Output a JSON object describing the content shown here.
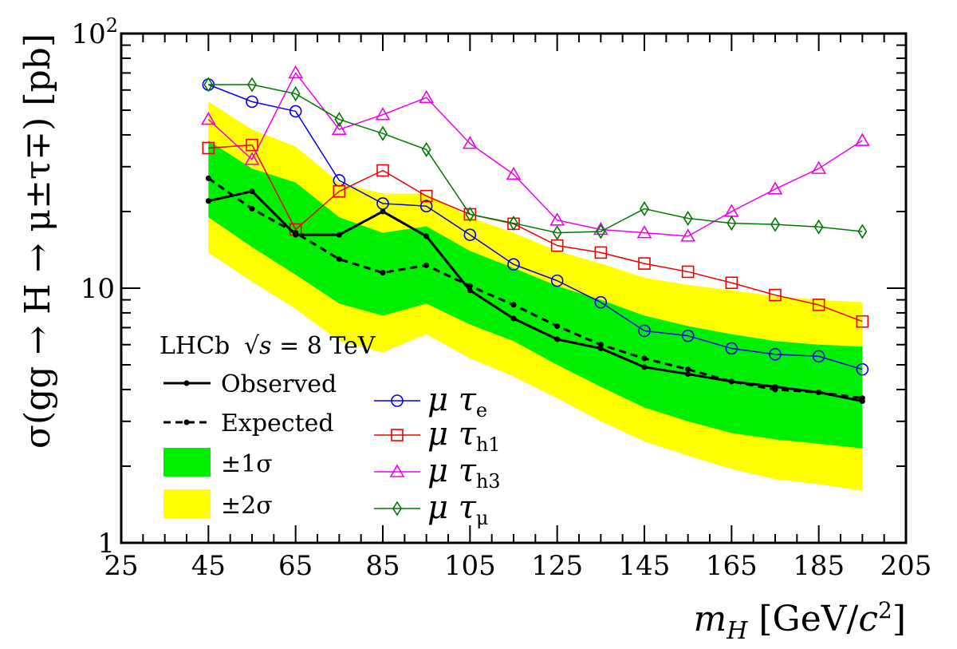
{
  "chart_data": {
    "type": "line",
    "x_scale": "linear",
    "y_scale": "log",
    "xlabel": {
      "var": "m",
      "sub": "H",
      "unit": "[GeV/",
      "unit_var": "c",
      "unit_sup": "2",
      "unit_close": "]"
    },
    "ylabel": "σ(gg → H → μ±τ∓) [pb]",
    "xlim": [
      25,
      205
    ],
    "ylim": [
      1,
      100
    ],
    "x_ticks": [
      "25",
      "45",
      "65",
      "85",
      "105",
      "125",
      "145",
      "165",
      "185",
      "205"
    ],
    "y_ticks": [
      {
        "value": 1,
        "label": "1"
      },
      {
        "value": 10,
        "label": "10"
      },
      {
        "value": 100,
        "label": "10",
        "sup": "2"
      }
    ],
    "experiment_label": "LHCb",
    "energy_label": {
      "sqrt_sym": "√",
      "var": "s",
      "value": " = 8 TeV"
    },
    "x": [
      45,
      55,
      65,
      75,
      85,
      95,
      105,
      115,
      125,
      135,
      145,
      155,
      165,
      175,
      185,
      195
    ],
    "bands": [
      {
        "name": "±2σ",
        "color": "#ffff00",
        "lower": [
          13.8,
          10.6,
          8.3,
          6.2,
          5.6,
          6.6,
          5.3,
          4.5,
          3.7,
          3.0,
          2.5,
          2.2,
          1.95,
          1.78,
          1.7,
          1.6
        ],
        "upper": [
          54.0,
          42.0,
          36.0,
          26.0,
          23.5,
          23.5,
          19.0,
          16.5,
          14.0,
          12.5,
          11.0,
          10.3,
          9.8,
          9.3,
          9.0,
          8.8
        ]
      },
      {
        "name": "±1σ",
        "color": "#00ee00",
        "lower": [
          19.0,
          14.5,
          11.3,
          8.7,
          7.8,
          8.7,
          7.2,
          6.2,
          5.0,
          4.1,
          3.4,
          3.0,
          2.7,
          2.55,
          2.45,
          2.35
        ],
        "upper": [
          38.0,
          29.5,
          26.0,
          19.0,
          16.5,
          17.5,
          14.0,
          12.0,
          10.2,
          9.0,
          7.8,
          7.1,
          6.6,
          6.2,
          6.0,
          5.9
        ]
      }
    ],
    "series": [
      {
        "name": "Observed",
        "color": "#000000",
        "dash": "",
        "width": 3,
        "marker": "dot",
        "values": [
          22.0,
          24.0,
          16.2,
          16.2,
          20.0,
          16.0,
          9.8,
          7.6,
          6.3,
          5.8,
          4.9,
          4.6,
          4.3,
          4.1,
          3.9,
          3.6
        ]
      },
      {
        "name": "Expected",
        "color": "#000000",
        "dash": "9,6",
        "width": 3,
        "marker": "dot",
        "values": [
          27.0,
          20.5,
          16.5,
          13.0,
          11.5,
          12.3,
          10.2,
          8.6,
          7.1,
          6.0,
          5.3,
          4.8,
          4.3,
          4.0,
          3.9,
          3.7
        ]
      },
      {
        "name": "μτ_e",
        "color": "#0000ee",
        "dash": "",
        "width": 1.5,
        "marker": "circle",
        "values": [
          63.0,
          54.0,
          49.5,
          26.5,
          21.5,
          21.0,
          16.2,
          12.4,
          10.7,
          8.8,
          6.8,
          6.5,
          5.8,
          5.5,
          5.4,
          4.8
        ]
      },
      {
        "name": "μτ_h1",
        "color": "#ee0000",
        "dash": "",
        "width": 1.5,
        "marker": "square",
        "values": [
          35.5,
          36.5,
          17.0,
          24.0,
          29.0,
          23.0,
          19.5,
          17.9,
          14.7,
          13.8,
          12.5,
          11.6,
          10.5,
          9.4,
          8.6,
          7.4
        ]
      },
      {
        "name": "μτ_h3",
        "color": "#ee00ee",
        "dash": "",
        "width": 1.5,
        "marker": "triangle",
        "values": [
          46.0,
          32.0,
          70.0,
          42.0,
          48.0,
          56.0,
          37.0,
          28.0,
          18.5,
          17.0,
          16.5,
          16.0,
          20.0,
          24.5,
          29.5,
          38.0
        ]
      },
      {
        "name": "μτ_μ",
        "color": "#007700",
        "dash": "",
        "width": 1.5,
        "marker": "diamond",
        "values": [
          63.0,
          63.0,
          58.0,
          46.0,
          40.5,
          35.0,
          19.5,
          18.0,
          16.5,
          16.7,
          20.5,
          18.8,
          18.0,
          17.8,
          17.4,
          16.7
        ]
      }
    ],
    "legend_left": [
      {
        "label": "Observed",
        "kind": "solid"
      },
      {
        "label": "Expected",
        "kind": "dashed"
      },
      {
        "label": "±1σ",
        "kind": "band",
        "color": "#00ee00"
      },
      {
        "label": "±2σ",
        "kind": "band",
        "color": "#ffff00"
      }
    ],
    "legend_right": [
      {
        "main": "μ τ",
        "sub": "e",
        "series": 2
      },
      {
        "main": "μ τ",
        "sub": "h1",
        "series": 3
      },
      {
        "main": "μ τ",
        "sub": "h3",
        "series": 4
      },
      {
        "main": "μ τ",
        "sub": "μ",
        "series": 5
      }
    ]
  }
}
